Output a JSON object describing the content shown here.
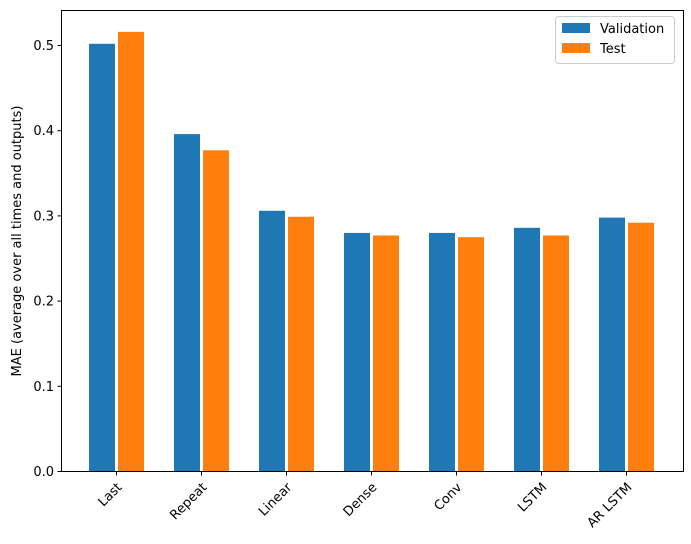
{
  "chart_data": {
    "type": "bar",
    "categories": [
      "Last",
      "Repeat",
      "Linear",
      "Dense",
      "Conv",
      "LSTM",
      "AR LSTM"
    ],
    "series": [
      {
        "name": "Validation",
        "color": "#1f77b4",
        "values": [
          0.502,
          0.396,
          0.306,
          0.28,
          0.28,
          0.286,
          0.298
        ]
      },
      {
        "name": "Test",
        "color": "#ff7f0e",
        "values": [
          0.516,
          0.377,
          0.299,
          0.277,
          0.275,
          0.277,
          0.292
        ]
      }
    ],
    "title": "",
    "xlabel": "",
    "ylabel": "MAE (average over all times and outputs)",
    "ylim": [
      0,
      0.54
    ],
    "yticks": [
      "0.0",
      "0.1",
      "0.2",
      "0.3",
      "0.4",
      "0.5"
    ],
    "grid": false,
    "legend": "top-right"
  }
}
